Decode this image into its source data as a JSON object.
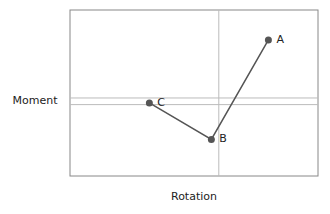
{
  "chart_data": {
    "type": "line",
    "x": [
      0.32,
      0.57,
      0.8
    ],
    "values": [
      0.44,
      0.22,
      0.82
    ],
    "point_labels": [
      "C",
      "B",
      "A"
    ],
    "hlines": [
      0.47,
      0.43
    ],
    "vlines": [
      0.6
    ],
    "xlim": [
      0,
      1
    ],
    "ylim": [
      0,
      1
    ],
    "xlabel": "Rotation",
    "ylabel": "Moment",
    "tick_labels": false,
    "color": "#555555",
    "marker": "circle"
  }
}
